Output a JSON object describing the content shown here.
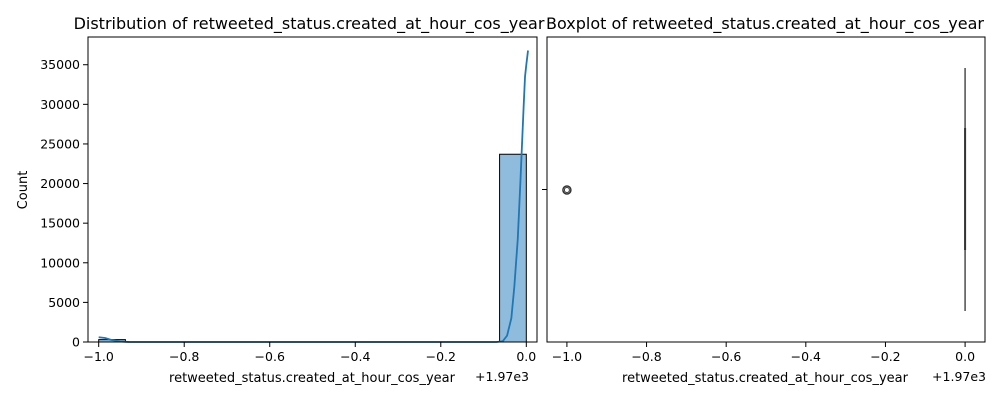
{
  "chart_data": [
    {
      "type": "bar",
      "title": "Distribution of retweeted_status.created_at_hour_cos_year",
      "xlabel": "retweeted_status.created_at_hour_cos_year",
      "ylabel": "Count",
      "x_offset_label": "+1.97e3",
      "xlim": [
        -1.025,
        0.025
      ],
      "ylim": [
        0,
        38500
      ],
      "x_ticks": [
        -1.0,
        -0.8,
        -0.6,
        -0.4,
        -0.2,
        0.0
      ],
      "x_tick_labels": [
        "−1.0",
        "−0.8",
        "−0.6",
        "−0.4",
        "−0.2",
        "0.0"
      ],
      "y_ticks": [
        0,
        5000,
        10000,
        15000,
        20000,
        25000,
        30000,
        35000
      ],
      "y_tick_labels": [
        "0",
        "5000",
        "10000",
        "15000",
        "20000",
        "25000",
        "30000",
        "35000"
      ],
      "bins": [
        {
          "x0": -1.0,
          "x1": -0.9375,
          "count": 300
        },
        {
          "x0": -0.0625,
          "x1": 0.0,
          "count": 23700
        }
      ],
      "kde": [
        [
          -1.0,
          600
        ],
        [
          -0.985,
          500
        ],
        [
          -0.97,
          250
        ],
        [
          -0.95,
          60
        ],
        [
          -0.93,
          5
        ],
        [
          -0.9,
          0
        ],
        [
          -0.5,
          0
        ],
        [
          -0.07,
          0
        ],
        [
          -0.055,
          100
        ],
        [
          -0.045,
          800
        ],
        [
          -0.035,
          3000
        ],
        [
          -0.028,
          7000
        ],
        [
          -0.02,
          13000
        ],
        [
          -0.014,
          20000
        ],
        [
          -0.01,
          25000
        ],
        [
          -0.006,
          30000
        ],
        [
          -0.003,
          33500
        ],
        [
          0.0,
          35000
        ],
        [
          0.004,
          36800
        ]
      ],
      "bar_color": "#8fbcdc",
      "line_color": "#1f77b4",
      "grid": false
    },
    {
      "type": "box",
      "title": "Boxplot of retweeted_status.created_at_hour_cos_year",
      "xlabel": "retweeted_status.created_at_hour_cos_year",
      "x_offset_label": "+1.97e3",
      "xlim": [
        -1.05,
        0.05
      ],
      "x_ticks": [
        -1.0,
        -0.8,
        -0.6,
        -0.4,
        -0.2,
        0.0
      ],
      "x_tick_labels": [
        "−1.0",
        "−0.8",
        "−0.6",
        "−0.4",
        "−0.2",
        "0.0"
      ],
      "box": {
        "q1": 0.0,
        "median": 0.0,
        "q3": 0.0,
        "whisker_low": 0.0,
        "whisker_high": 0.0
      },
      "outliers": [
        -1.0
      ],
      "box_color": "#4d4d4d",
      "grid": false
    }
  ]
}
